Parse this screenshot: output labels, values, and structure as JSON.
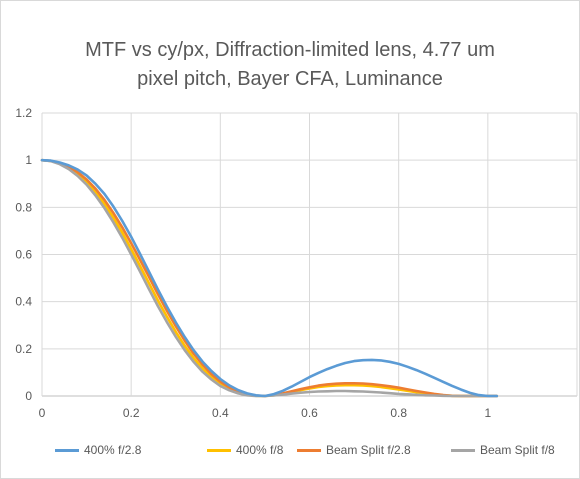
{
  "chart_data": {
    "type": "line",
    "title_lines": [
      "MTF vs cy/px, Diffraction-limited lens, 4.77 um",
      "pixel pitch, Bayer CFA, Luminance"
    ],
    "xlabel": "",
    "ylabel": "",
    "xlim": [
      0,
      1.2
    ],
    "ylim": [
      0,
      1.2
    ],
    "x_ticks": [
      "0",
      "0.2",
      "0.4",
      "0.6",
      "0.8",
      "1"
    ],
    "y_ticks": [
      "0",
      "0.2",
      "0.4",
      "0.6",
      "0.8",
      "1",
      "1.2"
    ],
    "grid": true,
    "legend_position": "bottom",
    "x": [
      0.0,
      0.02,
      0.04,
      0.06,
      0.08,
      0.1,
      0.12,
      0.14,
      0.16,
      0.18,
      0.2,
      0.22,
      0.24,
      0.26,
      0.28,
      0.3,
      0.32,
      0.34,
      0.36,
      0.38,
      0.4,
      0.42,
      0.44,
      0.46,
      0.48,
      0.5,
      0.52,
      0.54,
      0.56,
      0.58,
      0.6,
      0.62,
      0.64,
      0.66,
      0.68,
      0.7,
      0.72,
      0.74,
      0.76,
      0.78,
      0.8,
      0.82,
      0.84,
      0.86,
      0.88,
      0.9,
      0.92,
      0.94,
      0.96,
      0.98,
      1.0,
      1.02
    ],
    "series": [
      {
        "name": "400% f/2.8",
        "color": "#5b9bd5",
        "values": [
          1.0,
          0.998,
          0.99,
          0.978,
          0.96,
          0.935,
          0.9,
          0.857,
          0.804,
          0.742,
          0.675,
          0.602,
          0.527,
          0.452,
          0.38,
          0.312,
          0.25,
          0.194,
          0.146,
          0.106,
          0.072,
          0.045,
          0.025,
          0.011,
          0.003,
          0.0,
          0.008,
          0.022,
          0.04,
          0.06,
          0.08,
          0.098,
          0.114,
          0.128,
          0.14,
          0.148,
          0.152,
          0.153,
          0.151,
          0.145,
          0.136,
          0.124,
          0.11,
          0.094,
          0.077,
          0.06,
          0.043,
          0.027,
          0.013,
          0.004,
          0.0,
          0.0
        ]
      },
      {
        "name": "400% f/8",
        "color": "#ffc000",
        "values": [
          1.0,
          0.997,
          0.986,
          0.968,
          0.942,
          0.908,
          0.865,
          0.815,
          0.757,
          0.693,
          0.623,
          0.551,
          0.478,
          0.405,
          0.337,
          0.272,
          0.213,
          0.161,
          0.117,
          0.081,
          0.052,
          0.03,
          0.015,
          0.005,
          0.001,
          0.0,
          0.003,
          0.009,
          0.017,
          0.025,
          0.032,
          0.038,
          0.042,
          0.045,
          0.046,
          0.046,
          0.045,
          0.042,
          0.038,
          0.033,
          0.028,
          0.022,
          0.016,
          0.011,
          0.007,
          0.003,
          0.001,
          0.0,
          0.0,
          0.0,
          0.0,
          0.0
        ]
      },
      {
        "name": "Beam Split f/2.8",
        "color": "#ed7d31",
        "values": [
          1.0,
          0.997,
          0.988,
          0.972,
          0.949,
          0.918,
          0.879,
          0.832,
          0.777,
          0.715,
          0.648,
          0.577,
          0.505,
          0.432,
          0.362,
          0.296,
          0.235,
          0.18,
          0.133,
          0.093,
          0.061,
          0.037,
          0.019,
          0.007,
          0.002,
          0.0,
          0.004,
          0.011,
          0.02,
          0.029,
          0.037,
          0.044,
          0.049,
          0.052,
          0.054,
          0.054,
          0.053,
          0.05,
          0.046,
          0.041,
          0.035,
          0.028,
          0.021,
          0.015,
          0.009,
          0.004,
          0.001,
          0.0,
          0.0,
          0.0,
          0.0,
          0.0
        ]
      },
      {
        "name": "Beam Split f/8",
        "color": "#a5a5a5",
        "values": [
          1.0,
          0.996,
          0.983,
          0.962,
          0.933,
          0.896,
          0.85,
          0.797,
          0.737,
          0.671,
          0.6,
          0.527,
          0.453,
          0.381,
          0.314,
          0.251,
          0.194,
          0.145,
          0.103,
          0.07,
          0.043,
          0.024,
          0.011,
          0.003,
          0.0,
          0.0,
          0.002,
          0.006,
          0.01,
          0.014,
          0.017,
          0.019,
          0.02,
          0.021,
          0.021,
          0.02,
          0.019,
          0.017,
          0.015,
          0.012,
          0.009,
          0.007,
          0.005,
          0.003,
          0.002,
          0.001,
          0.0,
          0.0,
          0.0,
          0.0,
          0.0,
          0.0
        ]
      }
    ]
  }
}
